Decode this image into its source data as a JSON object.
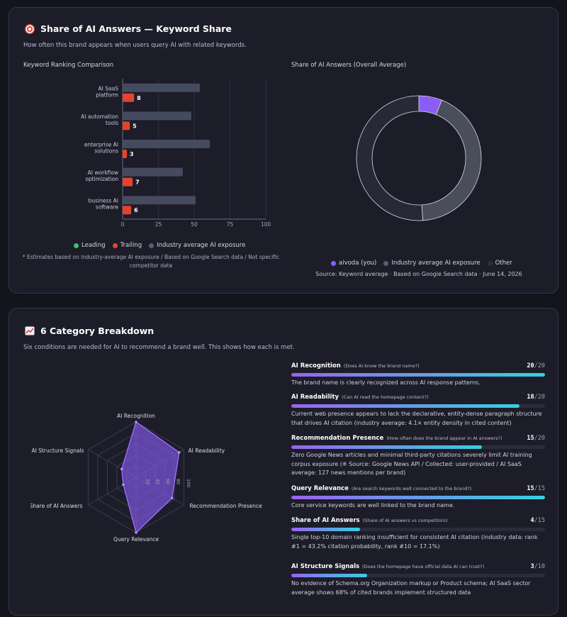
{
  "share_section": {
    "title": "Share of AI Answers — Keyword Share",
    "subtitle": "How often this brand appears when users query AI with related keywords.",
    "bar_chart_label": "Keyword Ranking Comparison",
    "donut_label": "Share of AI Answers (Overall Average)",
    "legend": {
      "leading": "Leading",
      "trailing": "Trailing",
      "industry": "Industry average AI exposure"
    },
    "note_line1": "* Estimates based on industry-average AI exposure / Based on Google Search data / Not specific",
    "note_line2": "competitor data",
    "donut_legend": {
      "brand": "aivoda (you)",
      "industry": "Industry average AI exposure",
      "other": "Other"
    },
    "donut_source": "Source: Keyword average · Based on Google Search data · June 14, 2026"
  },
  "chart_data": [
    {
      "type": "bar",
      "title": "Keyword Ranking Comparison",
      "categories": [
        [
          "AI SaaS",
          "platform"
        ],
        [
          "AI automation",
          "tools"
        ],
        [
          "enterprise AI",
          "solutions"
        ],
        [
          "AI workflow",
          "optimization"
        ],
        [
          "business AI",
          "software"
        ]
      ],
      "series": [
        {
          "name": "Industry average AI exposure",
          "values": [
            54,
            48,
            61,
            42,
            51
          ],
          "color": "#464a5e"
        },
        {
          "name": "Trailing",
          "values": [
            8,
            5,
            3,
            7,
            6
          ],
          "color": "#e5432d"
        }
      ],
      "xlim": [
        0,
        100
      ],
      "xticks": [
        "0",
        "25",
        "50",
        "75",
        "100"
      ]
    },
    {
      "type": "pie",
      "title": "Share of AI Answers (Overall Average)",
      "slices": [
        {
          "name": "aivoda (you)",
          "value": 6,
          "color": "#8b5cf6"
        },
        {
          "name": "Industry average AI exposure",
          "value": 43,
          "color": "#4a4d5c"
        },
        {
          "name": "Other",
          "value": 51,
          "color": "#272936"
        }
      ]
    },
    {
      "type": "radar",
      "axes": [
        "AI Recognition",
        "AI Readability",
        "Recommendation Presence",
        "Query Relevance",
        "Share of AI Answers",
        "AI Structure Signals"
      ],
      "values": [
        20,
        18,
        15,
        15,
        4,
        3
      ],
      "max": [
        20,
        20,
        20,
        15,
        15,
        10
      ],
      "ticks": [
        "20",
        "40",
        "60",
        "80",
        "100"
      ]
    }
  ],
  "breakdown": {
    "title": "6 Category Breakdown",
    "subtitle": "Six conditions are needed for AI to recommend a brand well. This shows how each is met.",
    "metrics": [
      {
        "name": "AI Recognition",
        "question": "(Does AI know the brand name?)",
        "score": "20",
        "max": "/20",
        "pct": 100,
        "desc": "The brand name is clearly recognized across AI response patterns."
      },
      {
        "name": "AI Readability",
        "question": "(Can AI read the homepage content?)",
        "score": "18",
        "max": "/20",
        "pct": 90,
        "desc": "Current web presence appears to lack the declarative, entity-dense paragraph structure that drives AI citation (industry average: 4.1× entity density in cited content)"
      },
      {
        "name": "Recommendation Presence",
        "question": "(How often does the brand appear in AI answers?)",
        "score": "15",
        "max": "/20",
        "pct": 75,
        "desc": "Zero Google News articles and minimal third-party citations severely limit AI training corpus exposure (※ Source: Google News API / Collected: user-provided / AI SaaS average: 127 news mentions per brand)"
      },
      {
        "name": "Query Relevance",
        "question": "(Are search keywords well connected to the brand?)",
        "score": "15",
        "max": "/15",
        "pct": 100,
        "desc": "Core service keywords are well linked to the brand name."
      },
      {
        "name": "Share of AI Answers",
        "question": "(Share of AI answers vs competitors)",
        "score": "4",
        "max": "/15",
        "pct": 27,
        "desc": "Single top-10 domain ranking insufficient for consistent AI citation (industry data: rank #1 = 43.2% citation probability, rank #10 = 17.1%)"
      },
      {
        "name": "AI Structure Signals",
        "question": "(Does the homepage have official data AI can trust?)",
        "score": "3",
        "max": "/10",
        "pct": 30,
        "desc": "No evidence of Schema.org Organization markup or Product schema; AI SaaS sector average shows 68% of cited brands implement structured data"
      }
    ]
  },
  "colors": {
    "leading": "#3fbf6f",
    "trailing": "#e5432d",
    "industry": "#464a5e",
    "brand": "#8b5cf6",
    "other": "#272936"
  },
  "icons": {
    "share_title": "target-icon",
    "breakdown_title": "chart-trend-icon"
  }
}
